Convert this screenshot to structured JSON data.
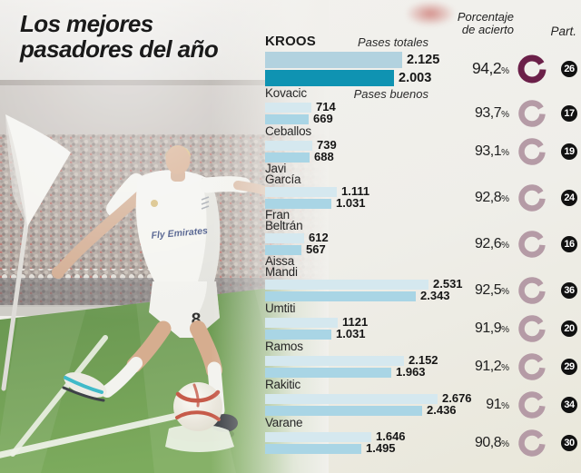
{
  "title": {
    "line1": "Los mejores",
    "line2": "pasadores del año"
  },
  "headers": {
    "accuracy_line1": "Porcentaje",
    "accuracy_line2": "de acierto",
    "participation": "Part."
  },
  "labels": {
    "pct_symbol": "%"
  },
  "photo": {
    "jersey_text": "Fly Emirates",
    "shorts_number": "8"
  },
  "colors": {
    "bar_total": "#d5e8ef",
    "bar_good": "#a9d5e5",
    "bar_total_highlight": "#b2d2df",
    "bar_good_highlight": "#0f93b2",
    "donut": "#b59ba6",
    "donut_highlight": "#6b2049",
    "badge_bg": "#111111"
  },
  "chart_data": {
    "type": "bar",
    "title": "Los mejores pasadores del año",
    "series": [
      {
        "name": "Pases totales"
      },
      {
        "name": "Pases buenos"
      }
    ],
    "xmax": 2676,
    "legend_position": "inline-top",
    "players": [
      {
        "name_lines": [
          "KROOS"
        ],
        "total_display": "2.125",
        "total": 2125,
        "good_display": "2.003",
        "good": 2003,
        "accuracy_display": "94,2",
        "accuracy": 94.2,
        "participation": "26",
        "highlight": true
      },
      {
        "name_lines": [
          "Kovacic"
        ],
        "total_display": "714",
        "total": 714,
        "good_display": "669",
        "good": 669,
        "accuracy_display": "93,7",
        "accuracy": 93.7,
        "participation": "17",
        "highlight": false
      },
      {
        "name_lines": [
          "Ceballos"
        ],
        "total_display": "739",
        "total": 739,
        "good_display": "688",
        "good": 688,
        "accuracy_display": "93,1",
        "accuracy": 93.1,
        "participation": "19",
        "highlight": false
      },
      {
        "name_lines": [
          "Javi",
          "García"
        ],
        "total_display": "1.111",
        "total": 1111,
        "good_display": "1.031",
        "good": 1031,
        "accuracy_display": "92,8",
        "accuracy": 92.8,
        "participation": "24",
        "highlight": false
      },
      {
        "name_lines": [
          "Fran",
          "Beltrán"
        ],
        "total_display": "612",
        "total": 612,
        "good_display": "567",
        "good": 567,
        "accuracy_display": "92,6",
        "accuracy": 92.6,
        "participation": "16",
        "highlight": false
      },
      {
        "name_lines": [
          "Aissa",
          "Mandi"
        ],
        "total_display": "2.531",
        "total": 2531,
        "good_display": "2.343",
        "good": 2343,
        "accuracy_display": "92,5",
        "accuracy": 92.5,
        "participation": "36",
        "highlight": false
      },
      {
        "name_lines": [
          "Umtiti"
        ],
        "total_display": "1121",
        "total": 1121,
        "good_display": "1.031",
        "good": 1031,
        "accuracy_display": "91,9",
        "accuracy": 91.9,
        "participation": "20",
        "highlight": false
      },
      {
        "name_lines": [
          "Ramos"
        ],
        "total_display": "2.152",
        "total": 2152,
        "good_display": "1.963",
        "good": 1963,
        "accuracy_display": "91,2",
        "accuracy": 91.2,
        "participation": "29",
        "highlight": false
      },
      {
        "name_lines": [
          "Rakitic"
        ],
        "total_display": "2.676",
        "total": 2676,
        "good_display": "2.436",
        "good": 2436,
        "accuracy_display": "91",
        "accuracy": 91.0,
        "participation": "34",
        "highlight": false
      },
      {
        "name_lines": [
          "Varane"
        ],
        "total_display": "1.646",
        "total": 1646,
        "good_display": "1.495",
        "good": 1495,
        "accuracy_display": "90,8",
        "accuracy": 90.8,
        "participation": "30",
        "highlight": false
      }
    ]
  }
}
